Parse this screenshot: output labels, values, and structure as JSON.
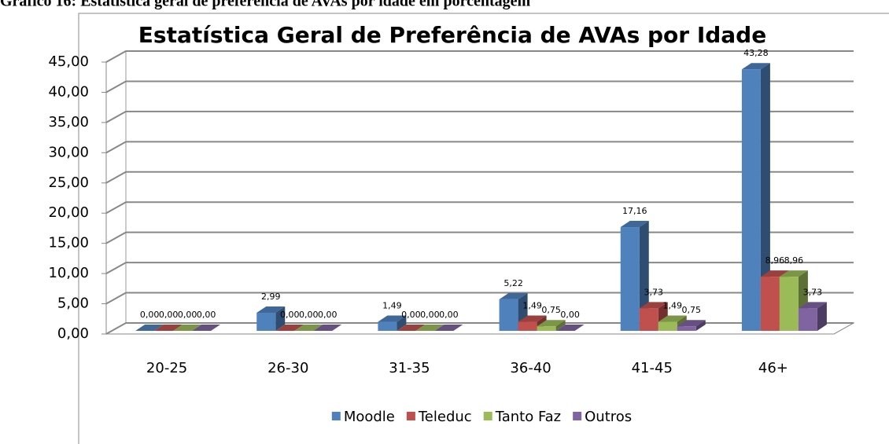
{
  "caption": "Gráfico 16: Estatística geral de preferência de AVAs por idade em porcentagem",
  "chart_data": {
    "type": "bar3d",
    "title": "Estatística Geral de Preferência de AVAs por Idade",
    "categories": [
      "20-25",
      "26-30",
      "31-35",
      "36-40",
      "41-45",
      "46+"
    ],
    "series": [
      {
        "name": "Moodle",
        "color": "#4f81bd",
        "values": [
          0.0,
          2.99,
          1.49,
          5.22,
          17.16,
          43.28
        ],
        "value_labels": [
          "0,00",
          "2,99",
          "1,49",
          "5,22",
          "17,16",
          "43,28"
        ]
      },
      {
        "name": "Teleduc",
        "color": "#c0504d",
        "values": [
          0.0,
          0.0,
          0.0,
          1.49,
          3.73,
          8.96
        ],
        "value_labels": [
          "0,00",
          "0,00",
          "0,00",
          "1,49",
          "3,73",
          "8,96"
        ]
      },
      {
        "name": "Tanto Faz",
        "color": "#9bbb59",
        "values": [
          0.0,
          0.0,
          0.0,
          0.75,
          1.49,
          8.96
        ],
        "value_labels": [
          "0,00",
          "0,00",
          "0,00",
          "0,75",
          "1,49",
          "8,96"
        ]
      },
      {
        "name": "Outros",
        "color": "#8064a2",
        "values": [
          0.0,
          0.0,
          0.0,
          0.0,
          0.75,
          3.73
        ],
        "value_labels": [
          "0,00",
          "0,00",
          "0,00",
          "0,00",
          "0,75",
          "3,73"
        ]
      }
    ],
    "ylim": [
      0,
      45
    ],
    "yticks": [
      {
        "value": 0,
        "label": "0,00"
      },
      {
        "value": 5,
        "label": "5,00"
      },
      {
        "value": 10,
        "label": "10,00"
      },
      {
        "value": 15,
        "label": "15,00"
      },
      {
        "value": 20,
        "label": "20,00"
      },
      {
        "value": 25,
        "label": "25,00"
      },
      {
        "value": 30,
        "label": "30,00"
      },
      {
        "value": 35,
        "label": "35,00"
      },
      {
        "value": 40,
        "label": "40,00"
      },
      {
        "value": 45,
        "label": "45,00"
      }
    ],
    "grid": true,
    "legend": "bottom"
  }
}
